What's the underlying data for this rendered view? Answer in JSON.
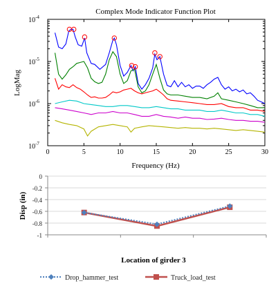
{
  "chart_data": [
    {
      "type": "line",
      "title": "Complex Mode Indicator Function Plot",
      "xlabel": "Frequency (Hz)",
      "ylabel": "LogMag",
      "xlim": [
        0,
        30
      ],
      "ylim": [
        1e-07,
        0.0001
      ],
      "y_scale": "log",
      "grid": false,
      "legend": "none",
      "x_tick_labels": [
        "0",
        "5",
        "10",
        "15",
        "20",
        "25",
        "30"
      ],
      "y_tick_labels": [
        {
          "base": "10",
          "exp": "-7"
        },
        {
          "base": "10",
          "exp": "-6"
        },
        {
          "base": "10",
          "exp": "-5"
        },
        {
          "base": "10",
          "exp": "-4"
        }
      ],
      "series": [
        {
          "color": "#0000ff",
          "points": [
            [
              1,
              4.8e-05
            ],
            [
              1.5,
              2.2e-05
            ],
            [
              2,
              2e-05
            ],
            [
              2.5,
              2.6e-05
            ],
            [
              2.9,
              5.2e-05
            ],
            [
              3.2,
              5.8e-05
            ],
            [
              3.5,
              5.8e-05
            ],
            [
              3.8,
              3.8e-05
            ],
            [
              4.2,
              2.5e-05
            ],
            [
              4.7,
              2.3e-05
            ],
            [
              5.1,
              3.6e-05
            ],
            [
              5.4,
              1.6e-05
            ],
            [
              6,
              9e-06
            ],
            [
              6.5,
              8.5e-06
            ],
            [
              7.2,
              6.5e-06
            ],
            [
              8,
              8.5e-06
            ],
            [
              8.5,
              1.6e-05
            ],
            [
              9,
              3.2e-05
            ],
            [
              9.2,
              3.6e-05
            ],
            [
              9.5,
              2.5e-05
            ],
            [
              10,
              8e-06
            ],
            [
              10.5,
              4.5e-06
            ],
            [
              11,
              5.5e-06
            ],
            [
              11.5,
              8e-06
            ],
            [
              11.8,
              6e-06
            ],
            [
              12.1,
              7.5e-06
            ],
            [
              12.5,
              3e-06
            ],
            [
              13,
              2.2e-06
            ],
            [
              13.5,
              2.8e-06
            ],
            [
              14,
              4e-06
            ],
            [
              14.5,
              7e-06
            ],
            [
              14.8,
              1.5e-05
            ],
            [
              15.1,
              1.1e-05
            ],
            [
              15.5,
              1.3e-05
            ],
            [
              16,
              5e-06
            ],
            [
              16.5,
              2.7e-06
            ],
            [
              17,
              2.5e-06
            ],
            [
              17.5,
              3.5e-06
            ],
            [
              18,
              2.5e-06
            ],
            [
              18.5,
              3.2e-06
            ],
            [
              19,
              2.5e-06
            ],
            [
              19.5,
              2.8e-06
            ],
            [
              20,
              2.3e-06
            ],
            [
              20.5,
              2.6e-06
            ],
            [
              21,
              2.6e-06
            ],
            [
              21.5,
              2.3e-06
            ],
            [
              22,
              2.8e-06
            ],
            [
              22.5,
              3.2e-06
            ],
            [
              23,
              3.8e-06
            ],
            [
              23.5,
              4.2e-06
            ],
            [
              24,
              2.8e-06
            ],
            [
              24.5,
              2.2e-06
            ],
            [
              25,
              2.5e-06
            ],
            [
              25.5,
              2e-06
            ],
            [
              26,
              2.2e-06
            ],
            [
              26.5,
              1.9e-06
            ],
            [
              27,
              2.1e-06
            ],
            [
              27.5,
              1.7e-06
            ],
            [
              28,
              1.8e-06
            ],
            [
              28.5,
              1.5e-06
            ],
            [
              29,
              1.2e-06
            ],
            [
              29.5,
              1.1e-06
            ],
            [
              30,
              1e-06
            ]
          ]
        },
        {
          "color": "#008000",
          "points": [
            [
              1,
              1.6e-05
            ],
            [
              1.5,
              5e-06
            ],
            [
              2,
              3.8e-06
            ],
            [
              2.5,
              4.8e-06
            ],
            [
              3,
              6.5e-06
            ],
            [
              3.5,
              7.5e-06
            ],
            [
              4,
              9e-06
            ],
            [
              4.5,
              9.5e-06
            ],
            [
              5,
              1e-05
            ],
            [
              5.5,
              7e-06
            ],
            [
              6,
              4e-06
            ],
            [
              6.5,
              3.3e-06
            ],
            [
              7,
              3e-06
            ],
            [
              7.5,
              3.2e-06
            ],
            [
              8,
              5e-06
            ],
            [
              8.5,
              1.1e-05
            ],
            [
              9,
              1.7e-05
            ],
            [
              9.5,
              1.3e-05
            ],
            [
              10,
              5e-06
            ],
            [
              10.5,
              3e-06
            ],
            [
              11,
              3.5e-06
            ],
            [
              11.5,
              6e-06
            ],
            [
              12,
              6.5e-06
            ],
            [
              12.5,
              2.5e-06
            ],
            [
              13,
              1.8e-06
            ],
            [
              13.5,
              2e-06
            ],
            [
              14,
              2.8e-06
            ],
            [
              14.5,
              5e-06
            ],
            [
              15,
              8.5e-06
            ],
            [
              15.5,
              4e-06
            ],
            [
              16,
              2.1e-06
            ],
            [
              16.5,
              1.7e-06
            ],
            [
              17,
              1.6e-06
            ],
            [
              18,
              1.6e-06
            ],
            [
              19,
              1.5e-06
            ],
            [
              20,
              1.4e-06
            ],
            [
              21,
              1.4e-06
            ],
            [
              22,
              1.3e-06
            ],
            [
              23,
              1.5e-06
            ],
            [
              23.5,
              1.8e-06
            ],
            [
              24,
              1.3e-06
            ],
            [
              25,
              1.2e-06
            ],
            [
              26,
              1.1e-06
            ],
            [
              27,
              1e-06
            ],
            [
              28,
              9e-07
            ],
            [
              29,
              8e-07
            ],
            [
              30,
              8e-07
            ]
          ]
        },
        {
          "color": "#ff0000",
          "points": [
            [
              1,
              4e-06
            ],
            [
              1.5,
              2.2e-06
            ],
            [
              2,
              2.8e-06
            ],
            [
              2.5,
              2.5e-06
            ],
            [
              3,
              2.4e-06
            ],
            [
              3.5,
              2.8e-06
            ],
            [
              4,
              2.4e-06
            ],
            [
              4.5,
              2.2e-06
            ],
            [
              5,
              1.9e-06
            ],
            [
              5.5,
              1.6e-06
            ],
            [
              6,
              1.4e-06
            ],
            [
              6.5,
              1.45e-06
            ],
            [
              7,
              1.35e-06
            ],
            [
              7.5,
              1.35e-06
            ],
            [
              8,
              1.4e-06
            ],
            [
              8.5,
              1.6e-06
            ],
            [
              9,
              1.9e-06
            ],
            [
              9.5,
              1.8e-06
            ],
            [
              10,
              1.9e-06
            ],
            [
              10.5,
              2.1e-06
            ],
            [
              11,
              2.2e-06
            ],
            [
              11.5,
              2.3e-06
            ],
            [
              12,
              2e-06
            ],
            [
              12.5,
              1.8e-06
            ],
            [
              13,
              1.7e-06
            ],
            [
              13.5,
              1.8e-06
            ],
            [
              14,
              1.9e-06
            ],
            [
              14.5,
              2e-06
            ],
            [
              15,
              2.2e-06
            ],
            [
              15.5,
              1.9e-06
            ],
            [
              16,
              1.6e-06
            ],
            [
              16.5,
              1.3e-06
            ],
            [
              17,
              1.2e-06
            ],
            [
              18,
              1.15e-06
            ],
            [
              19,
              1.1e-06
            ],
            [
              20,
              1.05e-06
            ],
            [
              21,
              1e-06
            ],
            [
              22,
              9.5e-07
            ],
            [
              23,
              9.5e-07
            ],
            [
              24,
              1e-06
            ],
            [
              25,
              8.5e-07
            ],
            [
              26,
              8e-07
            ],
            [
              27,
              8e-07
            ],
            [
              28,
              7e-07
            ],
            [
              29,
              7e-07
            ],
            [
              30,
              6.5e-07
            ]
          ]
        },
        {
          "color": "#00c8c8",
          "points": [
            [
              1,
              1e-06
            ],
            [
              2,
              1.1e-06
            ],
            [
              3,
              1.2e-06
            ],
            [
              4,
              1.15e-06
            ],
            [
              5,
              1e-06
            ],
            [
              6,
              9.5e-07
            ],
            [
              7,
              9e-07
            ],
            [
              8,
              8.5e-07
            ],
            [
              9,
              8.5e-07
            ],
            [
              10,
              9e-07
            ],
            [
              11,
              9e-07
            ],
            [
              12,
              8.5e-07
            ],
            [
              13,
              8e-07
            ],
            [
              14,
              8e-07
            ],
            [
              15,
              8.5e-07
            ],
            [
              16,
              8e-07
            ],
            [
              17,
              7.5e-07
            ],
            [
              18,
              7.5e-07
            ],
            [
              19,
              7e-07
            ],
            [
              20,
              7e-07
            ],
            [
              21,
              7e-07
            ],
            [
              22,
              6.5e-07
            ],
            [
              23,
              6.5e-07
            ],
            [
              24,
              7e-07
            ],
            [
              25,
              6.5e-07
            ],
            [
              26,
              6e-07
            ],
            [
              27,
              6e-07
            ],
            [
              28,
              5.5e-07
            ],
            [
              29,
              5.5e-07
            ],
            [
              30,
              5e-07
            ]
          ]
        },
        {
          "color": "#cc00cc",
          "points": [
            [
              1,
              8e-07
            ],
            [
              2,
              7.5e-07
            ],
            [
              3,
              7e-07
            ],
            [
              4,
              6.5e-07
            ],
            [
              5,
              6e-07
            ],
            [
              6,
              5.5e-07
            ],
            [
              7,
              6e-07
            ],
            [
              8,
              6e-07
            ],
            [
              9,
              6.5e-07
            ],
            [
              10,
              6e-07
            ],
            [
              11,
              6e-07
            ],
            [
              12,
              5.5e-07
            ],
            [
              13,
              5e-07
            ],
            [
              14,
              5e-07
            ],
            [
              15,
              5.5e-07
            ],
            [
              16,
              5e-07
            ],
            [
              17,
              4.8e-07
            ],
            [
              18,
              4.5e-07
            ],
            [
              19,
              4.8e-07
            ],
            [
              20,
              4.5e-07
            ],
            [
              21,
              4.5e-07
            ],
            [
              22,
              4.2e-07
            ],
            [
              23,
              4.3e-07
            ],
            [
              24,
              4.5e-07
            ],
            [
              25,
              4.2e-07
            ],
            [
              26,
              4e-07
            ],
            [
              27,
              4e-07
            ],
            [
              28,
              3.8e-07
            ],
            [
              29,
              3.8e-07
            ],
            [
              30,
              3.6e-07
            ]
          ]
        },
        {
          "color": "#b4b400",
          "points": [
            [
              1,
              4e-07
            ],
            [
              2,
              3.5e-07
            ],
            [
              3,
              3.2e-07
            ],
            [
              4,
              3e-07
            ],
            [
              5,
              2.5e-07
            ],
            [
              5.5,
              1.7e-07
            ],
            [
              6,
              2.2e-07
            ],
            [
              7,
              2.8e-07
            ],
            [
              8,
              3e-07
            ],
            [
              9,
              3.2e-07
            ],
            [
              10,
              3e-07
            ],
            [
              11,
              2.8e-07
            ],
            [
              11.5,
              2.1e-07
            ],
            [
              12,
              2.6e-07
            ],
            [
              13,
              2.8e-07
            ],
            [
              14,
              3e-07
            ],
            [
              15,
              2.9e-07
            ],
            [
              16,
              2.8e-07
            ],
            [
              17,
              2.7e-07
            ],
            [
              18,
              2.6e-07
            ],
            [
              19,
              2.7e-07
            ],
            [
              20,
              2.6e-07
            ],
            [
              21,
              2.6e-07
            ],
            [
              22,
              2.5e-07
            ],
            [
              23,
              2.6e-07
            ],
            [
              24,
              2.5e-07
            ],
            [
              25,
              2.4e-07
            ],
            [
              26,
              2.3e-07
            ],
            [
              27,
              2.4e-07
            ],
            [
              28,
              2.3e-07
            ],
            [
              29,
              2.2e-07
            ],
            [
              30,
              2.1e-07
            ]
          ]
        }
      ],
      "peak_markers": [
        [
          3.0,
          5.8e-05
        ],
        [
          3.6,
          5.8e-05
        ],
        [
          5.1,
          3.8e-05
        ],
        [
          9.2,
          3.6e-05
        ],
        [
          11.6,
          8e-06
        ],
        [
          12.1,
          7.5e-06
        ],
        [
          14.8,
          1.6e-05
        ],
        [
          15.5,
          1.3e-05
        ]
      ],
      "marker_color": "#ff0000"
    },
    {
      "type": "line",
      "title": "",
      "xlabel": "Location of girder 3",
      "ylabel": "Disp (in)",
      "categories": [
        "",
        "",
        ""
      ],
      "ylim": [
        -1,
        0
      ],
      "y_ticks": [
        0,
        -0.2,
        -0.4,
        -0.6,
        -0.8,
        -1
      ],
      "y_tick_labels": [
        "0",
        "-0.2",
        "-0.4",
        "-0.6",
        "-0.8",
        "-1"
      ],
      "grid": true,
      "legend": "bottom",
      "series": [
        {
          "name": "Drop_hammer_test",
          "color": "#4f81bd",
          "style": "dotted",
          "marker": "diamond",
          "values": [
            -0.62,
            -0.82,
            -0.51
          ]
        },
        {
          "name": "Truck_load_test",
          "color": "#c0504d",
          "style": "solid",
          "marker": "square",
          "values": [
            -0.62,
            -0.85,
            -0.53
          ]
        }
      ]
    }
  ]
}
